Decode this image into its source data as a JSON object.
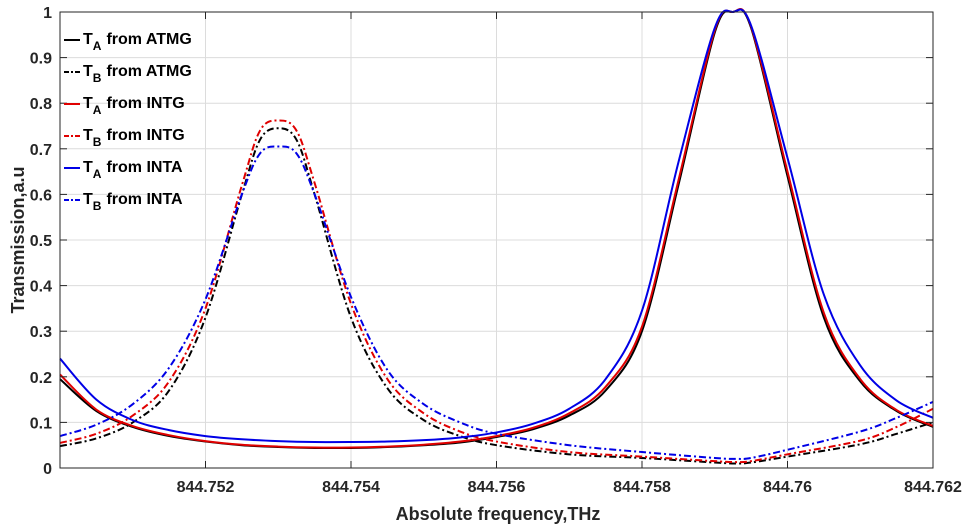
{
  "chart_data": {
    "type": "line",
    "xlabel": "Absolute frequency,THz",
    "ylabel": "Transmission,a.u",
    "xlim": [
      844.75,
      844.762
    ],
    "ylim": [
      0,
      1
    ],
    "xticks": [
      844.752,
      844.754,
      844.756,
      844.758,
      844.76,
      844.762
    ],
    "xtick_labels": [
      "844.752",
      "844.754",
      "844.756",
      "844.758",
      "844.76",
      "844.762"
    ],
    "yticks": [
      0,
      0.1,
      0.2,
      0.3,
      0.4,
      0.5,
      0.6,
      0.7,
      0.8,
      0.9,
      1
    ],
    "ytick_labels": [
      "0",
      "0.1",
      "0.2",
      "0.3",
      "0.4",
      "0.5",
      "0.6",
      "0.7",
      "0.8",
      "0.9",
      "1"
    ],
    "grid": true,
    "legend_position": "top-left",
    "series": [
      {
        "name": "T_A from ATMG",
        "label_main": "T",
        "label_sub": "A",
        "label_rest": "from ATMG",
        "color": "#000000",
        "dash": "solid",
        "x": [
          844.75,
          844.7505,
          844.751,
          844.7515,
          844.752,
          844.7525,
          844.753,
          844.7535,
          844.754,
          844.7545,
          844.755,
          844.7555,
          844.756,
          844.7565,
          844.757,
          844.7575,
          844.758,
          844.7585,
          844.759,
          844.75925,
          844.7595,
          844.76,
          844.7605,
          844.761,
          844.7615,
          844.762
        ],
        "y": [
          0.195,
          0.125,
          0.09,
          0.07,
          0.058,
          0.05,
          0.046,
          0.044,
          0.044,
          0.046,
          0.05,
          0.056,
          0.068,
          0.085,
          0.115,
          0.17,
          0.3,
          0.62,
          0.955,
          1.0,
          0.965,
          0.64,
          0.33,
          0.19,
          0.125,
          0.09
        ]
      },
      {
        "name": "T_B from ATMG",
        "label_main": "T",
        "label_sub": "B",
        "label_rest": "from ATMG",
        "color": "#000000",
        "dash": "dashdot",
        "x": [
          844.75,
          844.7505,
          844.751,
          844.7515,
          844.752,
          844.7525,
          844.75275,
          844.753,
          844.75325,
          844.7535,
          844.754,
          844.7545,
          844.755,
          844.7555,
          844.756,
          844.757,
          844.758,
          844.759,
          844.7593,
          844.7595,
          844.76,
          844.761,
          844.7615,
          844.762
        ],
        "y": [
          0.048,
          0.065,
          0.1,
          0.17,
          0.33,
          0.6,
          0.72,
          0.745,
          0.72,
          0.6,
          0.33,
          0.175,
          0.105,
          0.07,
          0.05,
          0.03,
          0.022,
          0.012,
          0.01,
          0.012,
          0.025,
          0.052,
          0.075,
          0.1
        ]
      },
      {
        "name": "T_A from INTG",
        "label_main": "T",
        "label_sub": "A",
        "label_rest": "from INTG",
        "color": "#e00000",
        "dash": "solid",
        "x": [
          844.75,
          844.7505,
          844.751,
          844.7515,
          844.752,
          844.7525,
          844.753,
          844.7535,
          844.754,
          844.7545,
          844.755,
          844.7555,
          844.756,
          844.7565,
          844.757,
          844.7575,
          844.758,
          844.7585,
          844.759,
          844.75925,
          844.7595,
          844.76,
          844.7605,
          844.761,
          844.7615,
          844.762
        ],
        "y": [
          0.205,
          0.128,
          0.092,
          0.072,
          0.059,
          0.051,
          0.047,
          0.045,
          0.045,
          0.047,
          0.051,
          0.058,
          0.07,
          0.088,
          0.12,
          0.178,
          0.31,
          0.63,
          0.96,
          1.0,
          0.968,
          0.65,
          0.34,
          0.195,
          0.127,
          0.092
        ]
      },
      {
        "name": "T_B from INTG",
        "label_main": "T",
        "label_sub": "B",
        "label_rest": "from INTG",
        "color": "#e00000",
        "dash": "dashdot",
        "x": [
          844.75,
          844.7505,
          844.751,
          844.7515,
          844.752,
          844.7525,
          844.75275,
          844.753,
          844.75325,
          844.7535,
          844.754,
          844.7545,
          844.755,
          844.7555,
          844.756,
          844.757,
          844.758,
          844.759,
          844.7593,
          844.7595,
          844.76,
          844.761,
          844.7615,
          844.762
        ],
        "y": [
          0.055,
          0.075,
          0.115,
          0.19,
          0.35,
          0.62,
          0.74,
          0.762,
          0.74,
          0.625,
          0.36,
          0.195,
          0.12,
          0.08,
          0.058,
          0.035,
          0.025,
          0.015,
          0.013,
          0.015,
          0.03,
          0.06,
          0.09,
          0.13
        ]
      },
      {
        "name": "T_A from INTA",
        "label_main": "T",
        "label_sub": "A",
        "label_rest": "from INTA",
        "color": "#0000e6",
        "dash": "solid",
        "x": [
          844.75,
          844.7505,
          844.751,
          844.7515,
          844.752,
          844.7525,
          844.753,
          844.7535,
          844.754,
          844.7545,
          844.755,
          844.7555,
          844.756,
          844.7565,
          844.757,
          844.7575,
          844.758,
          844.7585,
          844.759,
          844.75925,
          844.7595,
          844.76,
          844.7605,
          844.761,
          844.7615,
          844.762
        ],
        "y": [
          0.24,
          0.15,
          0.105,
          0.083,
          0.07,
          0.063,
          0.059,
          0.057,
          0.057,
          0.058,
          0.061,
          0.067,
          0.078,
          0.097,
          0.13,
          0.195,
          0.345,
          0.67,
          0.965,
          1.0,
          0.97,
          0.68,
          0.38,
          0.225,
          0.148,
          0.11
        ]
      },
      {
        "name": "T_B from INTA",
        "label_main": "T",
        "label_sub": "B",
        "label_rest": "from INTA",
        "color": "#0000e6",
        "dash": "dashdot",
        "x": [
          844.75,
          844.7505,
          844.751,
          844.7515,
          844.752,
          844.7525,
          844.75275,
          844.753,
          844.75325,
          844.7535,
          844.754,
          844.7545,
          844.755,
          844.7555,
          844.756,
          844.757,
          844.758,
          844.759,
          844.7593,
          844.7595,
          844.76,
          844.761,
          844.7615,
          844.762
        ],
        "y": [
          0.07,
          0.095,
          0.14,
          0.22,
          0.37,
          0.6,
          0.69,
          0.705,
          0.69,
          0.6,
          0.375,
          0.215,
          0.14,
          0.1,
          0.075,
          0.05,
          0.035,
          0.022,
          0.02,
          0.022,
          0.04,
          0.08,
          0.11,
          0.145
        ]
      }
    ]
  }
}
